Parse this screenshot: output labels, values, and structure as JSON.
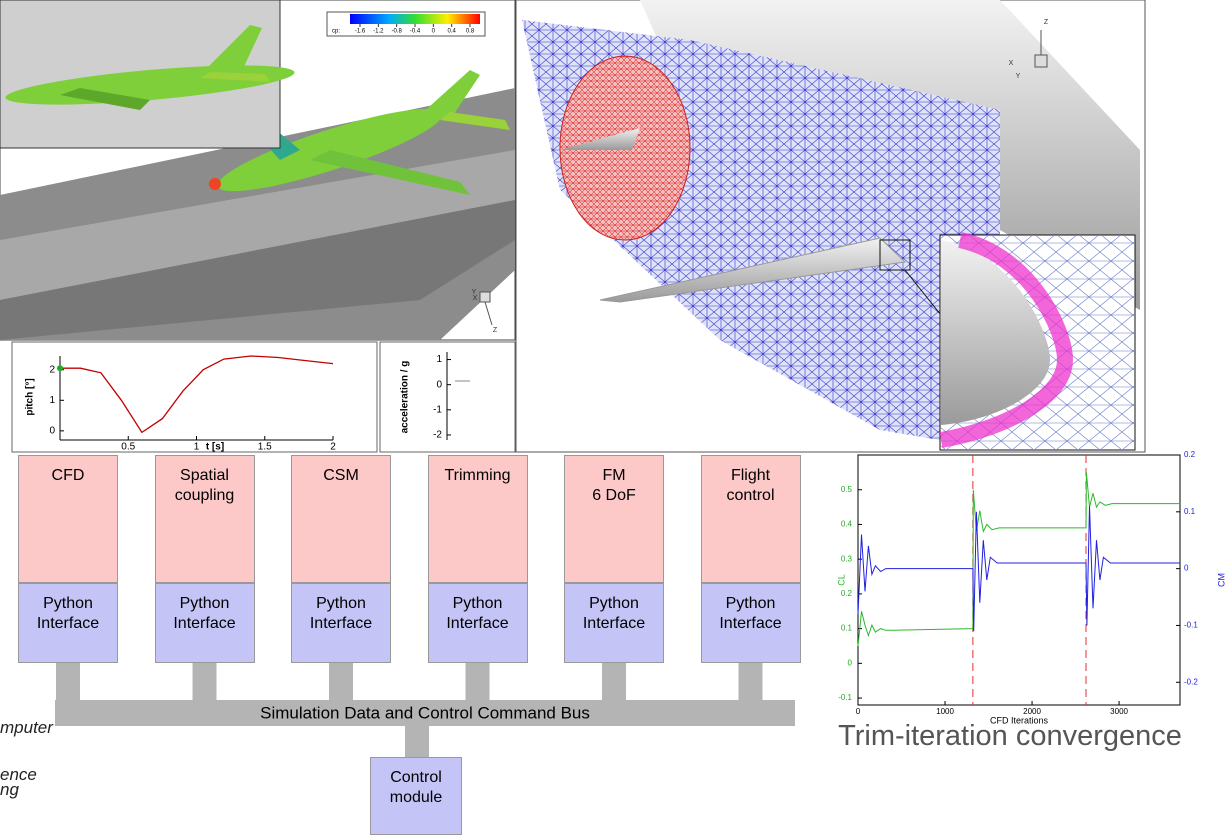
{
  "render_panel": {
    "colorbar": {
      "label": "cp:",
      "ticks": [
        -1.6,
        -1.2,
        -0.8,
        -0.4,
        0,
        0.4,
        0.8
      ]
    },
    "axes": [
      "X",
      "Y",
      "Z"
    ]
  },
  "mesh_panel": {
    "axes": [
      "Z",
      "X",
      "Y"
    ]
  },
  "pitch_plot": {
    "type": "line",
    "y_label": "pitch [°]",
    "x_label": "t [s]",
    "color": "#c00000",
    "x": [
      0,
      0.15,
      0.3,
      0.45,
      0.6,
      0.75,
      0.9,
      1.05,
      1.2,
      1.4,
      1.6,
      1.8,
      2.0
    ],
    "values": [
      2.05,
      2.05,
      1.9,
      1.0,
      -0.05,
      0.4,
      1.3,
      2.0,
      2.35,
      2.45,
      2.4,
      2.3,
      2.2
    ],
    "xlim": [
      0,
      2
    ],
    "ylim": [
      -0.3,
      2.45
    ],
    "xticks": [
      0.5,
      1,
      1.5,
      2
    ],
    "yticks": [
      0,
      1,
      2
    ]
  },
  "accel_plot": {
    "y_label": "acceleration / g",
    "ylim": [
      -2.2,
      1.3
    ],
    "yticks": [
      -2,
      -1,
      0,
      1
    ]
  },
  "modules": [
    {
      "name": "CFD",
      "interface": "Python\nInterface"
    },
    {
      "name": "Spatial\ncoupling",
      "interface": "Python\nInterface"
    },
    {
      "name": "CSM",
      "interface": "Python\nInterface"
    },
    {
      "name": "Trimming",
      "interface": "Python\nInterface"
    },
    {
      "name": "FM\n6 DoF",
      "interface": "Python\nInterface"
    },
    {
      "name": "Flight\ncontrol",
      "interface": "Python\nInterface"
    }
  ],
  "bus": "Simulation Data and Control Command Bus",
  "control": "Control\nmodule",
  "cropped_text": [
    "mputer",
    "ence",
    "ng"
  ],
  "convergence_chart": {
    "type": "line",
    "x_label": "CFD Iterations",
    "caption": "Trim-iteration convergence",
    "series": [
      {
        "name": "CL",
        "color": "#2db82d",
        "x": [
          0,
          40,
          80,
          120,
          160,
          200,
          260,
          320,
          400,
          1320,
          1325,
          1360,
          1400,
          1440,
          1480,
          1540,
          1620,
          1800,
          2620,
          2625,
          2660,
          2700,
          2740,
          2780,
          2840,
          2920,
          3100,
          3700
        ],
        "values": [
          0.05,
          0.15,
          0.11,
          0.08,
          0.11,
          0.09,
          0.1,
          0.095,
          0.095,
          0.1,
          0.5,
          0.38,
          0.44,
          0.38,
          0.4,
          0.385,
          0.39,
          0.39,
          0.39,
          0.55,
          0.45,
          0.49,
          0.45,
          0.465,
          0.455,
          0.46,
          0.46,
          0.46
        ]
      },
      {
        "name": "CM",
        "color": "#2020e0",
        "axis": "y2",
        "x": [
          0,
          40,
          80,
          120,
          160,
          200,
          260,
          320,
          400,
          1320,
          1330,
          1360,
          1400,
          1440,
          1480,
          1520,
          1600,
          1800,
          2620,
          2630,
          2660,
          2700,
          2740,
          2780,
          2820,
          2900,
          3100,
          3700
        ],
        "values": [
          -0.08,
          0.06,
          -0.04,
          0.04,
          -0.01,
          0.005,
          -0.005,
          0,
          0,
          0,
          -0.11,
          0.1,
          -0.06,
          0.05,
          -0.02,
          0.02,
          0.01,
          0.01,
          0.01,
          -0.1,
          0.11,
          -0.07,
          0.05,
          -0.02,
          0.02,
          0.01,
          0.01,
          0.01
        ]
      }
    ],
    "trim_steps": [
      1320,
      2620
    ],
    "xlim": [
      0,
      3700
    ],
    "ylim": [
      -0.12,
      0.6
    ],
    "y2lim": [
      -0.24,
      0.2
    ],
    "xticks": [
      0,
      1000,
      2000,
      3000
    ],
    "yticks": [
      -0.1,
      0,
      0.1,
      0.2,
      0.3,
      0.4,
      0.5
    ],
    "y2ticks": [
      -0.2,
      -0.1,
      0,
      0.1,
      0.2
    ]
  }
}
